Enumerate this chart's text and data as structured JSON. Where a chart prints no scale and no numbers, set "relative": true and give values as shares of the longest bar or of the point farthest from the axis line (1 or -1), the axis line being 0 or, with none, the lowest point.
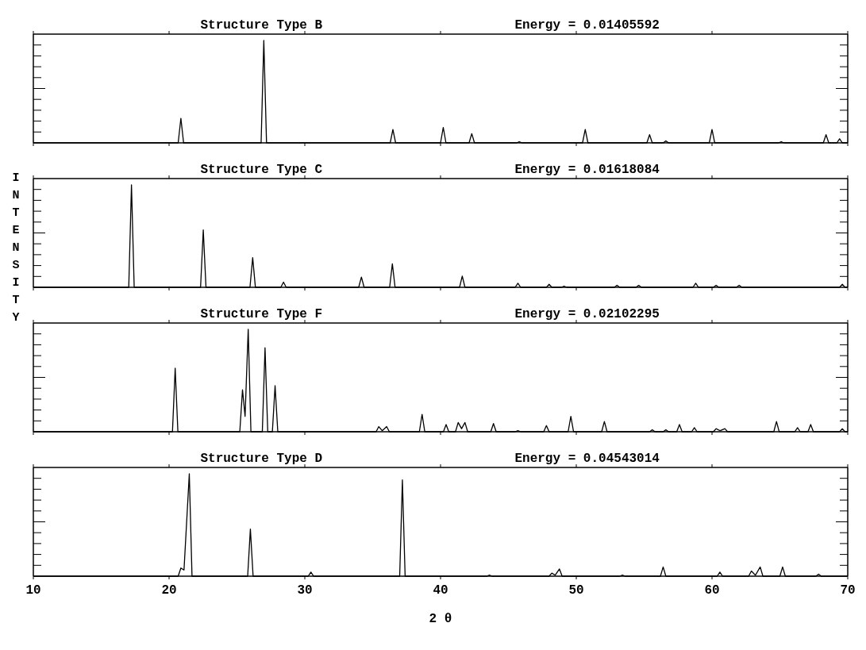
{
  "chart_data": [
    {
      "type": "line",
      "title": "Structure Type B",
      "subtitle": "Energy = 0.01405592",
      "relative": true,
      "color": "#000000",
      "xlim": [
        10,
        70
      ],
      "xticks": [
        10,
        20,
        30,
        40,
        50,
        60,
        70
      ],
      "tick_labels": false,
      "x": [
        10,
        20.67,
        20.87,
        21.07,
        26.78,
        26.98,
        27.18,
        36.29,
        36.49,
        36.69,
        40.0,
        40.2,
        40.4,
        42.1,
        42.3,
        42.5,
        45.6,
        45.8,
        46.0,
        50.46,
        50.66,
        50.86,
        55.2,
        55.4,
        55.6,
        56.4,
        56.6,
        56.8,
        59.8,
        60.0,
        60.2,
        64.9,
        65.1,
        65.3,
        68.2,
        68.4,
        68.6,
        69.2,
        69.4,
        69.6,
        70
      ],
      "values": [
        0,
        0,
        0.24,
        0,
        0,
        1,
        0,
        0,
        0.13,
        0,
        0,
        0.15,
        0,
        0,
        0.09,
        0,
        0,
        0.01,
        0,
        0,
        0.13,
        0,
        0,
        0.08,
        0,
        0,
        0.02,
        0,
        0,
        0.13,
        0,
        0,
        0.01,
        0,
        0,
        0.08,
        0,
        0,
        0.04,
        0,
        0
      ]
    },
    {
      "type": "line",
      "title": "Structure Type C",
      "subtitle": "Energy = 0.01618084",
      "relative": true,
      "color": "#000000",
      "xlim": [
        10,
        70
      ],
      "xticks": [
        10,
        20,
        30,
        40,
        50,
        60,
        70
      ],
      "tick_labels": false,
      "ylabel": "INTENSITY",
      "x": [
        10,
        17.03,
        17.23,
        17.43,
        22.32,
        22.52,
        22.72,
        25.96,
        26.16,
        26.36,
        28.23,
        28.43,
        28.63,
        33.97,
        34.17,
        34.37,
        36.25,
        36.45,
        36.65,
        41.4,
        41.6,
        41.8,
        45.5,
        45.7,
        45.9,
        47.8,
        48.0,
        48.2,
        48.9,
        49.1,
        49.3,
        52.8,
        53.0,
        53.2,
        54.4,
        54.6,
        54.8,
        58.6,
        58.8,
        59.0,
        60.1,
        60.3,
        60.5,
        61.8,
        62.0,
        62.2,
        69.4,
        69.6,
        69.8,
        70
      ],
      "values": [
        0,
        0,
        1,
        0,
        0,
        0.56,
        0,
        0,
        0.29,
        0,
        0,
        0.05,
        0,
        0,
        0.1,
        0,
        0,
        0.23,
        0,
        0,
        0.11,
        0,
        0,
        0.04,
        0,
        0,
        0.03,
        0,
        0,
        0.01,
        0,
        0,
        0.02,
        0,
        0,
        0.02,
        0,
        0,
        0.04,
        0,
        0,
        0.02,
        0,
        0,
        0.02,
        0,
        0,
        0.03,
        0,
        0
      ]
    },
    {
      "type": "line",
      "title": "Structure Type F",
      "subtitle": "Energy = 0.02102295",
      "relative": true,
      "color": "#000000",
      "xlim": [
        10,
        70
      ],
      "xticks": [
        10,
        20,
        30,
        40,
        50,
        60,
        70
      ],
      "tick_labels": false,
      "x": [
        10,
        20.25,
        20.45,
        20.65,
        25.21,
        25.41,
        25.6,
        25.83,
        26.03,
        26.87,
        27.07,
        27.27,
        27.61,
        27.81,
        28.01,
        35.25,
        35.45,
        35.7,
        36.03,
        36.23,
        38.44,
        38.64,
        38.84,
        40.21,
        40.41,
        40.61,
        41.1,
        41.3,
        41.55,
        41.8,
        42.0,
        43.7,
        43.9,
        44.1,
        45.5,
        45.7,
        45.9,
        47.6,
        47.8,
        48.0,
        49.4,
        49.6,
        49.8,
        51.87,
        52.07,
        52.27,
        55.4,
        55.6,
        55.8,
        56.4,
        56.6,
        56.8,
        57.4,
        57.6,
        57.8,
        58.5,
        58.7,
        58.9,
        60.1,
        60.3,
        60.6,
        60.95,
        61.15,
        64.55,
        64.75,
        64.95,
        66.1,
        66.3,
        66.5,
        67.07,
        67.27,
        67.47,
        69.4,
        69.6,
        69.8,
        70
      ],
      "values": [
        0,
        0,
        0.62,
        0,
        0,
        0.41,
        0.15,
        1,
        0,
        0,
        0.82,
        0,
        0,
        0.45,
        0,
        0,
        0.05,
        0.01,
        0.05,
        0,
        0,
        0.17,
        0,
        0,
        0.07,
        0,
        0,
        0.09,
        0.03,
        0.09,
        0,
        0,
        0.08,
        0,
        0,
        0.01,
        0,
        0,
        0.06,
        0,
        0,
        0.15,
        0,
        0,
        0.1,
        0,
        0,
        0.02,
        0,
        0,
        0.02,
        0,
        0,
        0.07,
        0,
        0,
        0.04,
        0,
        0,
        0.03,
        0.01,
        0.03,
        0,
        0,
        0.1,
        0,
        0,
        0.04,
        0,
        0,
        0.07,
        0,
        0,
        0.03,
        0,
        0
      ]
    },
    {
      "type": "line",
      "title": "Structure Type D",
      "subtitle": "Energy = 0.04543014",
      "relative": true,
      "color": "#000000",
      "xlim": [
        10,
        70
      ],
      "xticks": [
        10,
        20,
        30,
        40,
        50,
        60,
        70
      ],
      "tick_labels": "x",
      "xlabel": "2 θ",
      "x": [
        10,
        20.67,
        20.87,
        21.1,
        21.49,
        21.69,
        25.79,
        25.99,
        26.19,
        30.25,
        30.45,
        30.65,
        36.99,
        37.19,
        37.39,
        43.4,
        43.6,
        43.8,
        48.0,
        48.2,
        48.45,
        48.76,
        48.96,
        53.2,
        53.4,
        53.6,
        56.2,
        56.4,
        56.6,
        60.38,
        60.58,
        60.78,
        62.7,
        62.9,
        63.2,
        63.55,
        63.75,
        65.0,
        65.2,
        65.4,
        67.65,
        67.85,
        68.05,
        70
      ],
      "values": [
        0,
        0,
        0.08,
        0.06,
        1,
        0,
        0,
        0.46,
        0,
        0,
        0.04,
        0,
        0,
        0.94,
        0,
        0,
        0.01,
        0,
        0,
        0.03,
        0.01,
        0.07,
        0,
        0,
        0.01,
        0,
        0,
        0.09,
        0,
        0,
        0.04,
        0,
        0,
        0.05,
        0.01,
        0.09,
        0,
        0,
        0.09,
        0,
        0,
        0.02,
        0,
        0
      ]
    }
  ]
}
